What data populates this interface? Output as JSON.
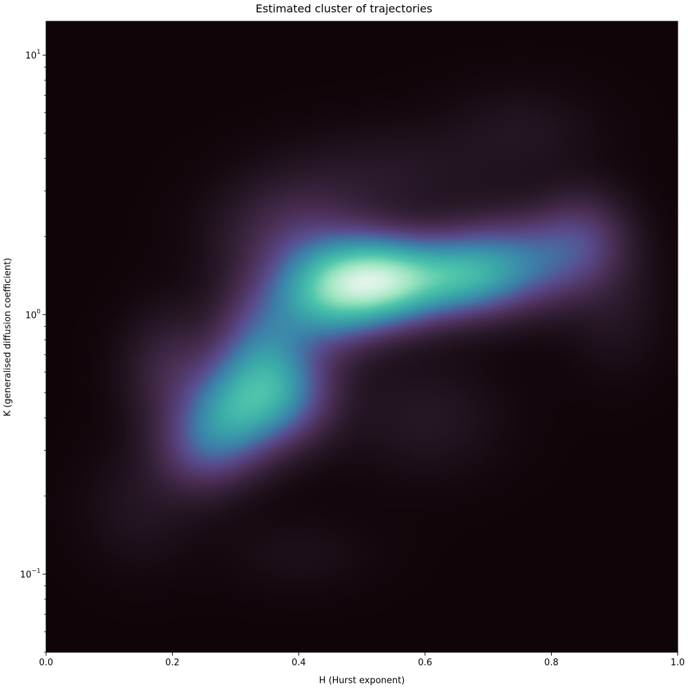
{
  "chart_data": {
    "type": "heatmap",
    "subtype": "kde-density",
    "title": "Estimated cluster of trajectories",
    "xlabel": "H (Hurst exponent)",
    "ylabel": "K (generalised diffusion coefficient)",
    "xlim": [
      0.0,
      1.0
    ],
    "ylim": [
      0.05,
      13.5
    ],
    "yscale": "log",
    "grid": false,
    "x_ticks": [
      {
        "value": 0.0,
        "label": "0.0"
      },
      {
        "value": 0.2,
        "label": "0.2"
      },
      {
        "value": 0.4,
        "label": "0.4"
      },
      {
        "value": 0.6,
        "label": "0.6"
      },
      {
        "value": 0.8,
        "label": "0.8"
      },
      {
        "value": 1.0,
        "label": "1.0"
      }
    ],
    "y_ticks": [
      {
        "value": 0.1,
        "base": "10",
        "exp": "−1"
      },
      {
        "value": 1,
        "base": "10",
        "exp": "0"
      },
      {
        "value": 10,
        "base": "10",
        "exp": "1"
      }
    ],
    "colormap": [
      "#0f0408",
      "#2a1a2b",
      "#4b2f55",
      "#5a4b8d",
      "#3d7fa9",
      "#3aa6a9",
      "#4fc6ab",
      "#9ee6c1",
      "#e2f5ea"
    ],
    "background_color": "#0f0408",
    "density_components": [
      {
        "h": 0.53,
        "k": 1.35,
        "weight": 1.0,
        "sigma_h": 0.07,
        "sigma_logk": 0.11
      },
      {
        "h": 0.66,
        "k": 1.4,
        "weight": 0.45,
        "sigma_h": 0.06,
        "sigma_logk": 0.1
      },
      {
        "h": 0.44,
        "k": 1.15,
        "weight": 0.5,
        "sigma_h": 0.06,
        "sigma_logk": 0.13
      },
      {
        "h": 0.75,
        "k": 1.6,
        "weight": 0.4,
        "sigma_h": 0.08,
        "sigma_logk": 0.12
      },
      {
        "h": 0.36,
        "k": 0.5,
        "weight": 0.55,
        "sigma_h": 0.06,
        "sigma_logk": 0.13
      },
      {
        "h": 0.29,
        "k": 0.4,
        "weight": 0.4,
        "sigma_h": 0.05,
        "sigma_logk": 0.13
      },
      {
        "h": 0.34,
        "k": 0.8,
        "weight": 0.3,
        "sigma_h": 0.05,
        "sigma_logk": 0.15
      },
      {
        "h": 0.24,
        "k": 0.3,
        "weight": 0.22,
        "sigma_h": 0.05,
        "sigma_logk": 0.12
      },
      {
        "h": 0.4,
        "k": 2.0,
        "weight": 0.2,
        "sigma_h": 0.08,
        "sigma_logk": 0.15
      },
      {
        "h": 0.85,
        "k": 2.0,
        "weight": 0.2,
        "sigma_h": 0.05,
        "sigma_logk": 0.12
      },
      {
        "h": 0.2,
        "k": 0.6,
        "weight": 0.15,
        "sigma_h": 0.05,
        "sigma_logk": 0.15
      },
      {
        "h": 0.75,
        "k": 5.0,
        "weight": 0.05,
        "sigma_h": 0.08,
        "sigma_logk": 0.12
      },
      {
        "h": 0.6,
        "k": 0.4,
        "weight": 0.06,
        "sigma_h": 0.08,
        "sigma_logk": 0.15
      },
      {
        "h": 0.15,
        "k": 0.18,
        "weight": 0.05,
        "sigma_h": 0.06,
        "sigma_logk": 0.15
      },
      {
        "h": 0.55,
        "k": 3.5,
        "weight": 0.06,
        "sigma_h": 0.1,
        "sigma_logk": 0.12
      },
      {
        "h": 0.9,
        "k": 1.0,
        "weight": 0.05,
        "sigma_h": 0.05,
        "sigma_logk": 0.15
      },
      {
        "h": 0.4,
        "k": 0.12,
        "weight": 0.03,
        "sigma_h": 0.08,
        "sigma_logk": 0.1
      }
    ]
  }
}
